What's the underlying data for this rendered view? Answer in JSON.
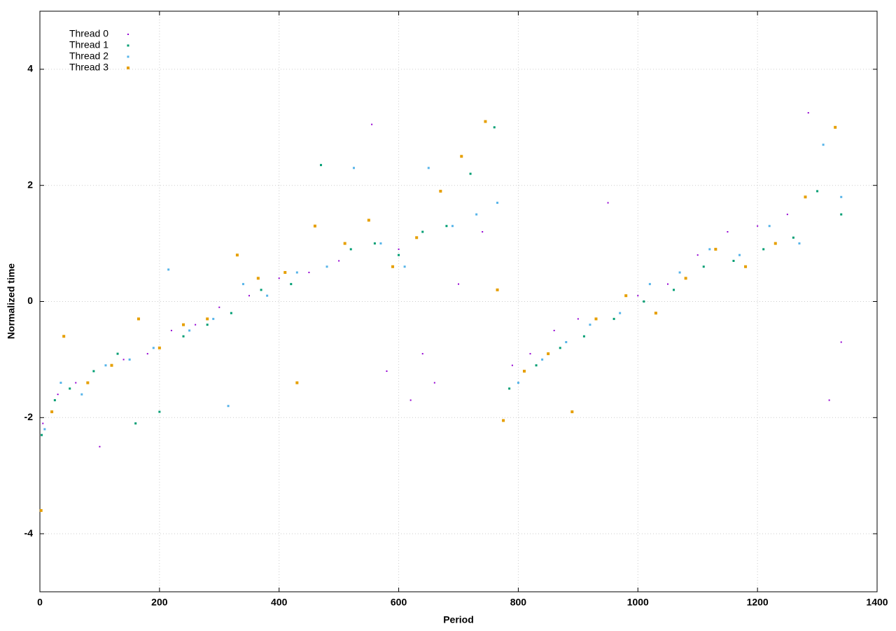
{
  "chart_data": {
    "type": "scatter",
    "xlabel": "Period",
    "ylabel": "Normalized time",
    "xlim": [
      0,
      1400
    ],
    "ylim": [
      -5,
      5
    ],
    "xticks": [
      0,
      200,
      400,
      600,
      800,
      1000,
      1200,
      1400
    ],
    "yticks": [
      -4,
      -2,
      0,
      2,
      4
    ],
    "grid": true,
    "legend": "top-left",
    "series": [
      {
        "name": "Thread 0",
        "color": "#9400d3",
        "x": [
          5,
          30,
          60,
          100,
          140,
          180,
          220,
          260,
          300,
          350,
          400,
          450,
          500,
          555,
          580,
          600,
          620,
          640,
          660,
          700,
          740,
          790,
          820,
          860,
          900,
          950,
          1000,
          1050,
          1100,
          1150,
          1200,
          1250,
          1285,
          1320,
          1340
        ],
        "values": [
          -2.1,
          -1.6,
          -1.4,
          -2.5,
          -1.0,
          -0.9,
          -0.5,
          -0.4,
          -0.1,
          0.1,
          0.4,
          0.5,
          0.7,
          3.05,
          -1.2,
          0.9,
          -1.7,
          -0.9,
          -1.4,
          0.3,
          1.2,
          -1.1,
          -0.9,
          -0.5,
          -0.3,
          1.7,
          0.1,
          0.3,
          0.8,
          1.2,
          1.3,
          1.5,
          3.25,
          -1.7,
          -0.7
        ]
      },
      {
        "name": "Thread 1",
        "color": "#009e73",
        "x": [
          3,
          25,
          50,
          90,
          130,
          160,
          200,
          240,
          280,
          320,
          370,
          420,
          470,
          520,
          560,
          600,
          640,
          680,
          720,
          760,
          785,
          830,
          870,
          910,
          960,
          1010,
          1060,
          1110,
          1160,
          1210,
          1260,
          1300,
          1340
        ],
        "values": [
          -2.3,
          -1.7,
          -1.5,
          -1.2,
          -0.9,
          -2.1,
          -1.9,
          -0.6,
          -0.4,
          -0.2,
          0.2,
          0.3,
          2.35,
          0.9,
          1.0,
          0.8,
          1.2,
          1.3,
          2.2,
          3.0,
          -1.5,
          -1.1,
          -0.8,
          -0.6,
          -0.3,
          0.0,
          0.2,
          0.6,
          0.7,
          0.9,
          1.1,
          1.9,
          1.5
        ]
      },
      {
        "name": "Thread 2",
        "color": "#56b4e9",
        "x": [
          8,
          35,
          70,
          110,
          150,
          190,
          215,
          250,
          290,
          315,
          340,
          380,
          430,
          480,
          525,
          570,
          610,
          650,
          690,
          730,
          765,
          800,
          840,
          880,
          920,
          970,
          1020,
          1070,
          1120,
          1170,
          1220,
          1270,
          1310,
          1340
        ],
        "values": [
          -2.2,
          -1.4,
          -1.6,
          -1.1,
          -1.0,
          -0.8,
          0.55,
          -0.5,
          -0.3,
          -1.8,
          0.3,
          0.1,
          0.5,
          0.6,
          2.3,
          1.0,
          0.6,
          2.3,
          1.3,
          1.5,
          1.7,
          -1.4,
          -1.0,
          -0.7,
          -0.4,
          -0.2,
          0.3,
          0.5,
          0.9,
          0.8,
          1.3,
          1.0,
          2.7,
          1.8
        ]
      },
      {
        "name": "Thread 3",
        "color": "#e69f00",
        "x": [
          2,
          20,
          40,
          80,
          120,
          165,
          200,
          240,
          280,
          330,
          365,
          410,
          430,
          460,
          510,
          550,
          590,
          630,
          670,
          705,
          745,
          765,
          775,
          810,
          850,
          890,
          930,
          980,
          1030,
          1080,
          1130,
          1180,
          1230,
          1280,
          1330
        ],
        "values": [
          -3.6,
          -1.9,
          -0.6,
          -1.4,
          -1.1,
          -0.3,
          -0.8,
          -0.4,
          -0.3,
          0.8,
          0.4,
          0.5,
          -1.4,
          1.3,
          1.0,
          1.4,
          0.6,
          1.1,
          1.9,
          2.5,
          3.1,
          0.2,
          -2.05,
          -1.2,
          -0.9,
          -1.9,
          -0.3,
          0.1,
          -0.2,
          0.4,
          0.9,
          0.6,
          1.0,
          1.8,
          3.0
        ]
      }
    ]
  }
}
